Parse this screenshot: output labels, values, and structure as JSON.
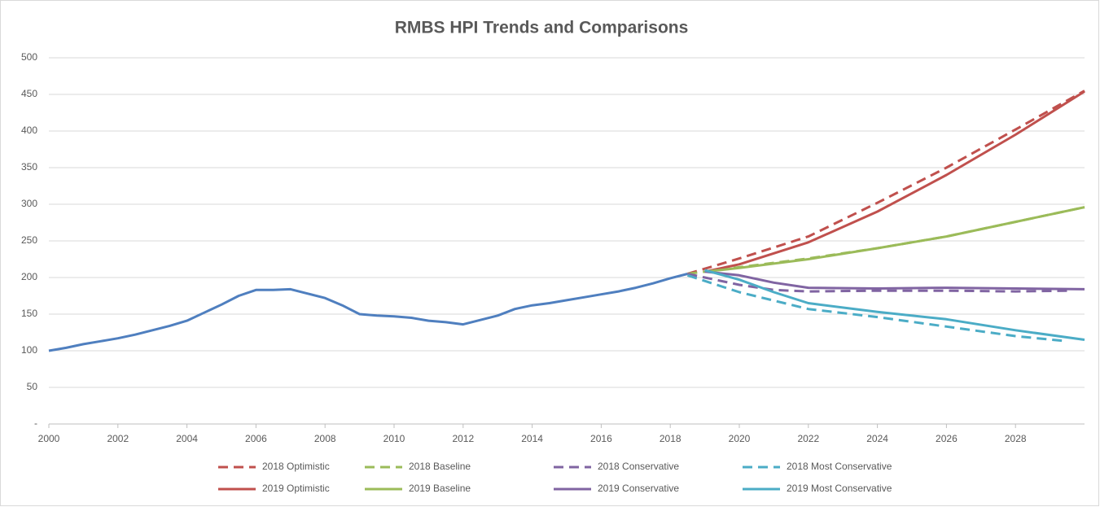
{
  "chart_data": {
    "type": "line",
    "title": "RMBS HPI Trends and Comparisons",
    "xlim": [
      2000,
      2030
    ],
    "xticks": [
      2000,
      2002,
      2004,
      2006,
      2008,
      2010,
      2012,
      2014,
      2016,
      2018,
      2020,
      2022,
      2024,
      2026,
      2028
    ],
    "ylim": [
      0,
      500
    ],
    "yticks": [
      {
        "value": 0,
        "label": "-"
      },
      50,
      100,
      150,
      200,
      250,
      300,
      350,
      400,
      450,
      500
    ],
    "grid": true,
    "legend": "bottom",
    "series": [
      {
        "color": "#4f7fbf",
        "dashed": false,
        "x": [
          2000,
          2000.5,
          2001,
          2001.5,
          2002,
          2002.5,
          2003,
          2003.5,
          2004,
          2004.5,
          2005,
          2005.5,
          2006,
          2006.5,
          2007,
          2007.5,
          2008,
          2008.5,
          2009,
          2009.5,
          2010,
          2010.5,
          2011,
          2011.5,
          2012,
          2012.5,
          2013,
          2013.5,
          2014,
          2014.5,
          2015,
          2015.5,
          2016,
          2016.5,
          2017,
          2017.5,
          2018,
          2018.5
        ],
        "values": [
          100,
          104,
          109,
          113,
          117,
          122,
          128,
          134,
          141,
          152,
          163,
          175,
          183,
          183,
          184,
          178,
          172,
          162,
          150,
          148,
          147,
          145,
          141,
          139,
          136,
          142,
          148,
          157,
          162,
          165,
          169,
          173,
          177,
          181,
          186,
          192,
          199,
          205
        ]
      },
      {
        "name": "2018 Optimistic",
        "color": "#c0504d",
        "dashed": true,
        "x": [
          2018.5,
          2020,
          2022,
          2024,
          2026,
          2028,
          2030
        ],
        "values": [
          205,
          226,
          256,
          302,
          350,
          402,
          455
        ]
      },
      {
        "name": "2018 Baseline",
        "color": "#9bbb59",
        "dashed": true,
        "x": [
          2018.5,
          2020,
          2022,
          2024,
          2026,
          2028,
          2030
        ],
        "values": [
          205,
          214,
          226,
          240,
          256,
          276,
          296
        ]
      },
      {
        "name": "2018 Conservative",
        "color": "#8064a2",
        "dashed": true,
        "x": [
          2018.5,
          2019,
          2020,
          2021,
          2022,
          2024,
          2026,
          2028,
          2029.5
        ],
        "values": [
          205,
          200,
          190,
          183,
          181,
          182,
          182,
          181,
          182
        ]
      },
      {
        "name": "2018 Most Conservative",
        "color": "#4bacc6",
        "dashed": true,
        "x": [
          2018.5,
          2020,
          2022,
          2024,
          2026,
          2028,
          2029.5
        ],
        "values": [
          203,
          180,
          157,
          146,
          133,
          120,
          113
        ]
      },
      {
        "name": "2019 Optimistic",
        "color": "#c0504d",
        "dashed": false,
        "x": [
          2019,
          2020,
          2022,
          2024,
          2026,
          2028,
          2030
        ],
        "values": [
          208,
          218,
          248,
          290,
          340,
          395,
          454
        ]
      },
      {
        "name": "2019 Baseline",
        "color": "#9bbb59",
        "dashed": false,
        "x": [
          2019,
          2020,
          2022,
          2024,
          2026,
          2028,
          2030
        ],
        "values": [
          208,
          213,
          225,
          240,
          256,
          276,
          296
        ]
      },
      {
        "name": "2019 Conservative",
        "color": "#8064a2",
        "dashed": false,
        "x": [
          2019,
          2020,
          2021,
          2022,
          2024,
          2026,
          2028,
          2030
        ],
        "values": [
          208,
          203,
          193,
          186,
          185,
          186,
          185,
          184
        ]
      },
      {
        "name": "2019 Most Conservative",
        "color": "#4bacc6",
        "dashed": false,
        "x": [
          2019,
          2020,
          2021,
          2022,
          2024,
          2026,
          2028,
          2030
        ],
        "values": [
          210,
          197,
          180,
          165,
          153,
          143,
          128,
          115
        ]
      }
    ]
  }
}
